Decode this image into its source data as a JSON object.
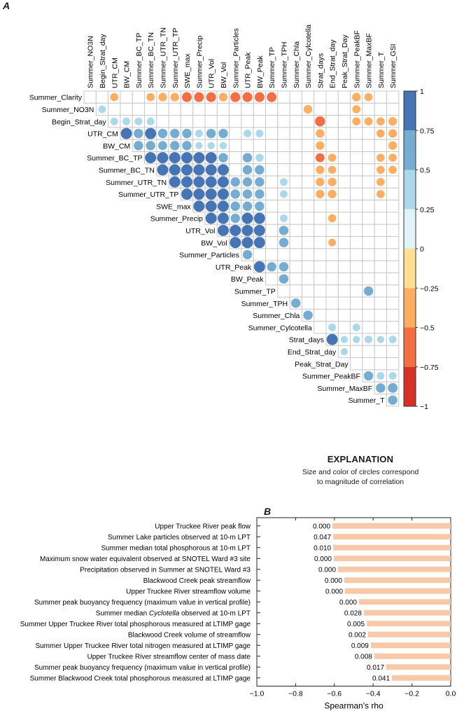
{
  "panel_a": {
    "letter": "A"
  },
  "panel_b": {
    "letter": "B"
  },
  "explanation": {
    "title": "EXPLANATION",
    "description_line1": "Size and color of circles correspond",
    "description_line2": "to magnitude of correlation"
  },
  "chart_data": [
    {
      "type": "heatmap",
      "title": "",
      "subtype": "correlation-matrix-circles",
      "row_labels": [
        "Summer_Clarity",
        "Summer_NO3N",
        "Begin_Strat_day",
        "UTR_CM",
        "BW_CM",
        "Summer_BC_TP",
        "Summer_BC_TN",
        "Summer_UTR_TN",
        "Summer_UTR_TP",
        "SWE_max",
        "Summer_Precip",
        "UTR_Vol",
        "BW_Vol",
        "Summer_Particles",
        "UTR_Peak",
        "BW_Peak",
        "Summer_TP",
        "Summer_TPH",
        "Summer_Chla",
        "Summer_Cylcotella",
        "Strat_days",
        "End_Strat_day",
        "Peak_Strat_Day",
        "Summer_PeakBF",
        "Summer_MaxBF",
        "Summer_T"
      ],
      "column_labels": [
        "Summer_NO3N",
        "Begin_Strat_day",
        "UTR_CM",
        "BW_CM",
        "Summer_BC_TP",
        "Summer_BC_TN",
        "Summer_UTR_TN",
        "Summer_UTR_TP",
        "SWE_max",
        "Summer_Precip",
        "UTR_Vol",
        "BW_Vol",
        "Summer_Particles",
        "UTR_Peak",
        "BW_Peak",
        "Summer_TP",
        "Summer_TPH",
        "Summer_Chla",
        "Summer_Cylcotella",
        "Strat_days",
        "End_Strat_day",
        "Peak_Strat_Day",
        "Summer_PeakBF",
        "Summer_MaxBF",
        "Summer_T",
        "Summer_GSI"
      ],
      "cells": [
        {
          "row": 0,
          "col": 2,
          "value": -0.45
        },
        {
          "row": 0,
          "col": 5,
          "value": -0.45
        },
        {
          "row": 0,
          "col": 6,
          "value": -0.5
        },
        {
          "row": 0,
          "col": 7,
          "value": -0.5
        },
        {
          "row": 0,
          "col": 8,
          "value": -0.65
        },
        {
          "row": 0,
          "col": 9,
          "value": -0.65
        },
        {
          "row": 0,
          "col": 10,
          "value": -0.65
        },
        {
          "row": 0,
          "col": 11,
          "value": -0.5
        },
        {
          "row": 0,
          "col": 12,
          "value": -0.65
        },
        {
          "row": 0,
          "col": 13,
          "value": -0.65
        },
        {
          "row": 0,
          "col": 14,
          "value": -0.65
        },
        {
          "row": 0,
          "col": 15,
          "value": -0.65
        },
        {
          "row": 0,
          "col": 22,
          "value": -0.5
        },
        {
          "row": 0,
          "col": 23,
          "value": -0.45
        },
        {
          "row": 1,
          "col": 1,
          "value": 0.4
        },
        {
          "row": 1,
          "col": 18,
          "value": -0.5
        },
        {
          "row": 1,
          "col": 22,
          "value": -0.45
        },
        {
          "row": 2,
          "col": 2,
          "value": 0.4
        },
        {
          "row": 2,
          "col": 3,
          "value": 0.4
        },
        {
          "row": 2,
          "col": 4,
          "value": 0.4
        },
        {
          "row": 2,
          "col": 5,
          "value": 0.4
        },
        {
          "row": 2,
          "col": 19,
          "value": -0.7
        },
        {
          "row": 2,
          "col": 22,
          "value": -0.45
        },
        {
          "row": 2,
          "col": 23,
          "value": -0.45
        },
        {
          "row": 2,
          "col": 24,
          "value": -0.45
        },
        {
          "row": 2,
          "col": 25,
          "value": -0.5
        },
        {
          "row": 3,
          "col": 3,
          "value": 0.85
        },
        {
          "row": 3,
          "col": 4,
          "value": 0.6
        },
        {
          "row": 3,
          "col": 5,
          "value": 0.85
        },
        {
          "row": 3,
          "col": 6,
          "value": 0.6
        },
        {
          "row": 3,
          "col": 7,
          "value": 0.6
        },
        {
          "row": 3,
          "col": 8,
          "value": 0.6
        },
        {
          "row": 3,
          "col": 9,
          "value": 0.4
        },
        {
          "row": 3,
          "col": 10,
          "value": 0.6
        },
        {
          "row": 3,
          "col": 11,
          "value": 0.6
        },
        {
          "row": 3,
          "col": 13,
          "value": 0.4
        },
        {
          "row": 3,
          "col": 14,
          "value": 0.4
        },
        {
          "row": 3,
          "col": 19,
          "value": -0.5
        },
        {
          "row": 3,
          "col": 24,
          "value": -0.45
        },
        {
          "row": 3,
          "col": 25,
          "value": -0.5
        },
        {
          "row": 4,
          "col": 4,
          "value": 0.6
        },
        {
          "row": 4,
          "col": 5,
          "value": 0.6
        },
        {
          "row": 4,
          "col": 6,
          "value": 0.55
        },
        {
          "row": 4,
          "col": 7,
          "value": 0.6
        },
        {
          "row": 4,
          "col": 8,
          "value": 0.6
        },
        {
          "row": 4,
          "col": 9,
          "value": 0.35
        },
        {
          "row": 4,
          "col": 10,
          "value": 0.35
        },
        {
          "row": 4,
          "col": 11,
          "value": 0.35
        },
        {
          "row": 4,
          "col": 19,
          "value": -0.5
        },
        {
          "row": 4,
          "col": 25,
          "value": -0.5
        },
        {
          "row": 5,
          "col": 5,
          "value": 0.85
        },
        {
          "row": 5,
          "col": 6,
          "value": 0.85
        },
        {
          "row": 5,
          "col": 7,
          "value": 0.85
        },
        {
          "row": 5,
          "col": 8,
          "value": 0.85
        },
        {
          "row": 5,
          "col": 9,
          "value": 0.85
        },
        {
          "row": 5,
          "col": 10,
          "value": 0.85
        },
        {
          "row": 5,
          "col": 11,
          "value": 0.6
        },
        {
          "row": 5,
          "col": 13,
          "value": 0.6
        },
        {
          "row": 5,
          "col": 14,
          "value": 0.45
        },
        {
          "row": 5,
          "col": 19,
          "value": -0.55
        },
        {
          "row": 5,
          "col": 20,
          "value": -0.45
        },
        {
          "row": 5,
          "col": 24,
          "value": -0.45
        },
        {
          "row": 5,
          "col": 25,
          "value": -0.45
        },
        {
          "row": 6,
          "col": 6,
          "value": 0.85
        },
        {
          "row": 6,
          "col": 7,
          "value": 0.85
        },
        {
          "row": 6,
          "col": 8,
          "value": 0.85
        },
        {
          "row": 6,
          "col": 9,
          "value": 0.85
        },
        {
          "row": 6,
          "col": 10,
          "value": 0.85
        },
        {
          "row": 6,
          "col": 11,
          "value": 0.85
        },
        {
          "row": 6,
          "col": 13,
          "value": 0.6
        },
        {
          "row": 6,
          "col": 14,
          "value": 0.6
        },
        {
          "row": 6,
          "col": 19,
          "value": -0.5
        },
        {
          "row": 6,
          "col": 20,
          "value": -0.45
        },
        {
          "row": 6,
          "col": 24,
          "value": -0.45
        },
        {
          "row": 6,
          "col": 25,
          "value": -0.45
        },
        {
          "row": 7,
          "col": 7,
          "value": 0.85
        },
        {
          "row": 7,
          "col": 8,
          "value": 0.85
        },
        {
          "row": 7,
          "col": 9,
          "value": 0.85
        },
        {
          "row": 7,
          "col": 10,
          "value": 0.85
        },
        {
          "row": 7,
          "col": 11,
          "value": 0.85
        },
        {
          "row": 7,
          "col": 12,
          "value": 0.6
        },
        {
          "row": 7,
          "col": 13,
          "value": 0.6
        },
        {
          "row": 7,
          "col": 14,
          "value": 0.6
        },
        {
          "row": 7,
          "col": 16,
          "value": 0.4
        },
        {
          "row": 7,
          "col": 19,
          "value": -0.5
        },
        {
          "row": 7,
          "col": 20,
          "value": -0.5
        },
        {
          "row": 7,
          "col": 24,
          "value": -0.45
        },
        {
          "row": 8,
          "col": 8,
          "value": 0.85
        },
        {
          "row": 8,
          "col": 9,
          "value": 0.85
        },
        {
          "row": 8,
          "col": 10,
          "value": 0.85
        },
        {
          "row": 8,
          "col": 11,
          "value": 0.85
        },
        {
          "row": 8,
          "col": 12,
          "value": 0.6
        },
        {
          "row": 8,
          "col": 13,
          "value": 0.6
        },
        {
          "row": 8,
          "col": 14,
          "value": 0.6
        },
        {
          "row": 8,
          "col": 16,
          "value": 0.4
        },
        {
          "row": 8,
          "col": 19,
          "value": -0.5
        },
        {
          "row": 8,
          "col": 20,
          "value": -0.5
        },
        {
          "row": 8,
          "col": 24,
          "value": -0.45
        },
        {
          "row": 9,
          "col": 9,
          "value": 0.85
        },
        {
          "row": 9,
          "col": 10,
          "value": 0.85
        },
        {
          "row": 9,
          "col": 11,
          "value": 0.85
        },
        {
          "row": 9,
          "col": 12,
          "value": 0.6
        },
        {
          "row": 9,
          "col": 13,
          "value": 0.6
        },
        {
          "row": 9,
          "col": 14,
          "value": 0.6
        },
        {
          "row": 10,
          "col": 10,
          "value": 0.85
        },
        {
          "row": 10,
          "col": 11,
          "value": 0.85
        },
        {
          "row": 10,
          "col": 12,
          "value": 0.6
        },
        {
          "row": 10,
          "col": 13,
          "value": 0.85
        },
        {
          "row": 10,
          "col": 14,
          "value": 0.85
        },
        {
          "row": 10,
          "col": 16,
          "value": 0.4
        },
        {
          "row": 10,
          "col": 20,
          "value": -0.45
        },
        {
          "row": 11,
          "col": 11,
          "value": 0.85
        },
        {
          "row": 11,
          "col": 12,
          "value": 0.85
        },
        {
          "row": 11,
          "col": 13,
          "value": 0.85
        },
        {
          "row": 11,
          "col": 14,
          "value": 0.85
        },
        {
          "row": 11,
          "col": 16,
          "value": 0.6
        },
        {
          "row": 12,
          "col": 12,
          "value": 0.85
        },
        {
          "row": 12,
          "col": 13,
          "value": 0.85
        },
        {
          "row": 12,
          "col": 14,
          "value": 0.85
        },
        {
          "row": 12,
          "col": 16,
          "value": 0.6
        },
        {
          "row": 12,
          "col": 20,
          "value": -0.4
        },
        {
          "row": 13,
          "col": 13,
          "value": 0.6
        },
        {
          "row": 14,
          "col": 14,
          "value": 0.85
        },
        {
          "row": 14,
          "col": 15,
          "value": 0.6
        },
        {
          "row": 14,
          "col": 16,
          "value": 0.6
        },
        {
          "row": 15,
          "col": 16,
          "value": 0.6
        },
        {
          "row": 16,
          "col": 23,
          "value": 0.6
        },
        {
          "row": 17,
          "col": 17,
          "value": 0.6
        },
        {
          "row": 18,
          "col": 18,
          "value": 0.6
        },
        {
          "row": 19,
          "col": 20,
          "value": 0.4
        },
        {
          "row": 19,
          "col": 22,
          "value": 0.4
        },
        {
          "row": 20,
          "col": 20,
          "value": 0.85
        },
        {
          "row": 20,
          "col": 21,
          "value": 0.35
        },
        {
          "row": 20,
          "col": 22,
          "value": 0.35
        },
        {
          "row": 20,
          "col": 23,
          "value": 0.4
        },
        {
          "row": 20,
          "col": 24,
          "value": 0.35
        },
        {
          "row": 20,
          "col": 25,
          "value": 0.4
        },
        {
          "row": 21,
          "col": 21,
          "value": 0.35
        },
        {
          "row": 23,
          "col": 23,
          "value": 0.6
        },
        {
          "row": 23,
          "col": 24,
          "value": 0.4
        },
        {
          "row": 23,
          "col": 25,
          "value": 0.4
        },
        {
          "row": 24,
          "col": 24,
          "value": 0.6
        },
        {
          "row": 24,
          "col": 25,
          "value": 0.65
        },
        {
          "row": 25,
          "col": 25,
          "value": 0.6
        }
      ],
      "colorbar": {
        "range": [
          -1,
          1
        ],
        "tick_labels": [
          "1",
          "0.75",
          "0.5",
          "0.25",
          "0",
          "-0.25",
          "-0.5",
          "-0.75",
          "-1"
        ],
        "bins": [
          {
            "from": 0.75,
            "to": 1,
            "color": "#4575b4"
          },
          {
            "from": 0.5,
            "to": 0.75,
            "color": "#74add1"
          },
          {
            "from": 0.25,
            "to": 0.5,
            "color": "#abd9e9"
          },
          {
            "from": 0,
            "to": 0.25,
            "color": "#e0f3f8"
          },
          {
            "from": -0.25,
            "to": 0,
            "color": "#fee090"
          },
          {
            "from": -0.5,
            "to": -0.25,
            "color": "#fdae61"
          },
          {
            "from": -0.75,
            "to": -0.5,
            "color": "#f46d43"
          },
          {
            "from": -1,
            "to": -0.75,
            "color": "#d73027"
          }
        ]
      }
    },
    {
      "type": "bar",
      "orientation": "horizontal",
      "title": "",
      "xlabel": "Spearman's rho",
      "ylabel": "",
      "xlim": [
        -1.0,
        0.0
      ],
      "x_tick_labels": [
        "−1.0",
        "−0.8",
        "−0.6",
        "−0.4",
        "−0.2",
        "0.0"
      ],
      "x_ticks": [
        -1.0,
        -0.8,
        -0.6,
        -0.4,
        -0.2,
        0.0
      ],
      "bar_color": "#f8c9a8",
      "categories": [
        {
          "label": "Upper Truckee River peak flow"
        },
        {
          "label": "Summer Lake particles observed at 10-m LPT"
        },
        {
          "label": "Summer median total phosphorous at 10-m LPT"
        },
        {
          "label": "Maximum snow water equivalent observed at SNOTEL Ward #3 site"
        },
        {
          "label": "Precipitation observed in Summer at SNOTEL Ward #3"
        },
        {
          "label": "Blackwood Creek peak streamflow"
        },
        {
          "label": "Upper Truckee River streamflow volume"
        },
        {
          "label": "Summer peak buoyancy frequency (maximum value in vertical profile)"
        },
        {
          "label_pre": "Summer median ",
          "label_italic": "Cyclotella",
          "label_post": " observed at 10-m LPT"
        },
        {
          "label": "Summer Upper Truckee River total phosphorous measured at LTIMP gage"
        },
        {
          "label": "Blackwood Creek volume of streamflow"
        },
        {
          "label": "Summer Upper Truckee River total nitrogen measured at LTIMP gage"
        },
        {
          "label": "Upper Truckee River streamflow center of mass date"
        },
        {
          "label": "Summer peak buoyancy frequency (maximum value in vertical profile)"
        },
        {
          "label": "Summer Blackwood Creek total phosphorous measured at LTIMP gage"
        }
      ],
      "values": [
        -0.61,
        -0.606,
        -0.606,
        -0.603,
        -0.581,
        -0.549,
        -0.545,
        -0.473,
        -0.448,
        -0.433,
        -0.426,
        -0.412,
        -0.394,
        -0.332,
        -0.303
      ],
      "p_value_labels": [
        "0.000",
        "0.047",
        "0.010",
        "0.000",
        "0.000",
        "0.000",
        "0.000",
        "0.000",
        "0.028",
        "0.005",
        "0.002",
        "0.009",
        "0.008",
        "0.017",
        "0.041"
      ]
    }
  ]
}
